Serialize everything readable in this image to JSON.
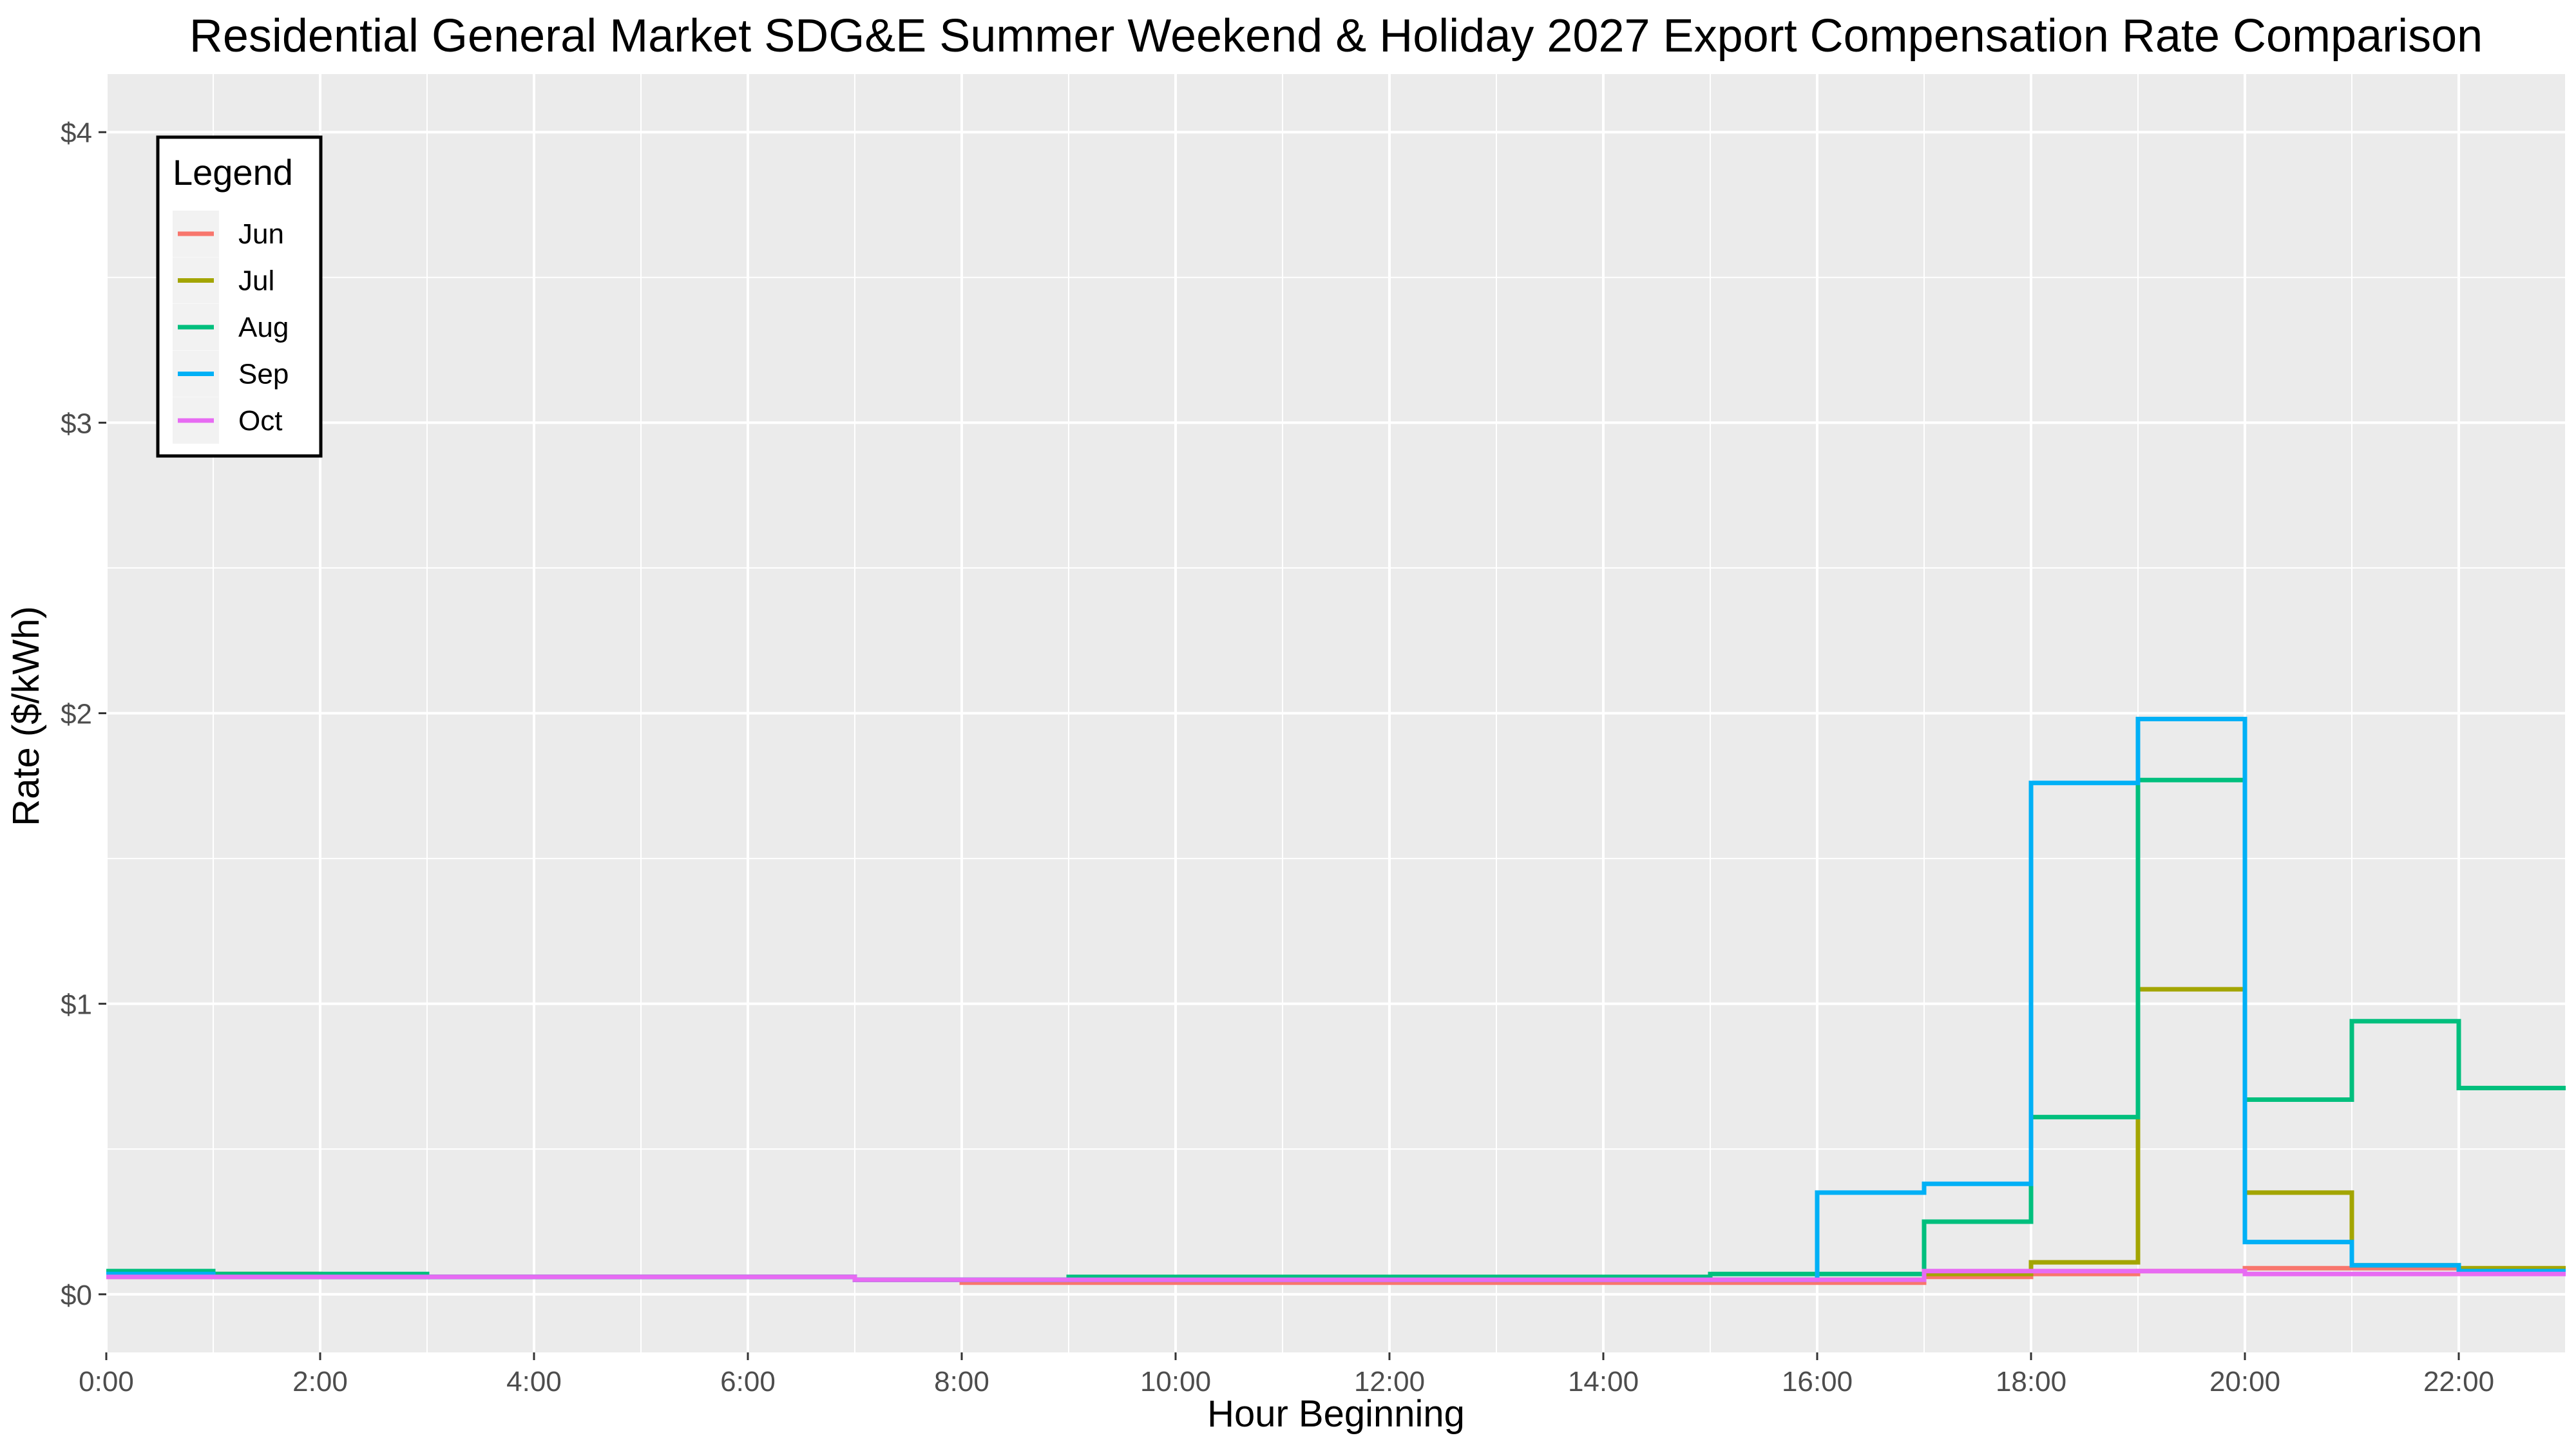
{
  "chart_data": {
    "type": "line",
    "step": true,
    "title": "Residential General Market SDG&E Summer Weekend & Holiday 2027 Export Compensation Rate Comparison",
    "xlabel": "Hour Beginning",
    "ylabel": "Rate ($/kWh)",
    "xlim": [
      0,
      23
    ],
    "ylim": [
      -0.2,
      4.2
    ],
    "x_tick_values": [
      0,
      2,
      4,
      6,
      8,
      10,
      12,
      14,
      16,
      18,
      20,
      22
    ],
    "x_tick_labels": [
      "0:00",
      "2:00",
      "4:00",
      "6:00",
      "8:00",
      "10:00",
      "12:00",
      "14:00",
      "16:00",
      "18:00",
      "20:00",
      "22:00"
    ],
    "y_tick_values": [
      0,
      1,
      2,
      3,
      4
    ],
    "y_tick_labels": [
      "$0",
      "$1",
      "$2",
      "$3",
      "$4"
    ],
    "grid": true,
    "legend": {
      "title": "Legend",
      "position": "top-left"
    },
    "x": [
      0,
      1,
      2,
      3,
      4,
      5,
      6,
      7,
      8,
      9,
      10,
      11,
      12,
      13,
      14,
      15,
      16,
      17,
      18,
      19,
      20,
      21,
      22,
      23
    ],
    "series": [
      {
        "name": "Jun",
        "color": "#F8766D",
        "values": [
          0.06,
          0.06,
          0.06,
          0.06,
          0.06,
          0.06,
          0.06,
          0.05,
          0.04,
          0.04,
          0.04,
          0.04,
          0.04,
          0.04,
          0.04,
          0.04,
          0.04,
          0.06,
          0.07,
          0.08,
          0.09,
          0.09,
          0.08,
          0.08
        ]
      },
      {
        "name": "Jul",
        "color": "#A3A500",
        "values": [
          0.07,
          0.07,
          0.06,
          0.06,
          0.06,
          0.06,
          0.06,
          0.05,
          0.05,
          0.05,
          0.05,
          0.05,
          0.05,
          0.05,
          0.05,
          0.05,
          0.05,
          0.07,
          0.11,
          1.05,
          0.35,
          0.1,
          0.09,
          0.09
        ]
      },
      {
        "name": "Aug",
        "color": "#00BF7D",
        "values": [
          0.08,
          0.07,
          0.07,
          0.06,
          0.06,
          0.06,
          0.06,
          0.05,
          0.05,
          0.06,
          0.06,
          0.06,
          0.06,
          0.06,
          0.06,
          0.07,
          0.07,
          0.25,
          0.61,
          1.77,
          0.67,
          0.94,
          0.71,
          0.71
        ]
      },
      {
        "name": "Sep",
        "color": "#00B0F6",
        "values": [
          0.07,
          0.06,
          0.06,
          0.06,
          0.06,
          0.06,
          0.06,
          0.05,
          0.05,
          0.05,
          0.05,
          0.05,
          0.05,
          0.05,
          0.05,
          0.05,
          0.35,
          0.38,
          1.76,
          1.98,
          0.18,
          0.1,
          0.08,
          0.08
        ]
      },
      {
        "name": "Oct",
        "color": "#E76BF3",
        "values": [
          0.06,
          0.06,
          0.06,
          0.06,
          0.06,
          0.06,
          0.06,
          0.05,
          0.05,
          0.05,
          0.05,
          0.05,
          0.05,
          0.05,
          0.05,
          0.05,
          0.05,
          0.08,
          0.08,
          0.08,
          0.07,
          0.07,
          0.07,
          0.07
        ]
      }
    ]
  }
}
